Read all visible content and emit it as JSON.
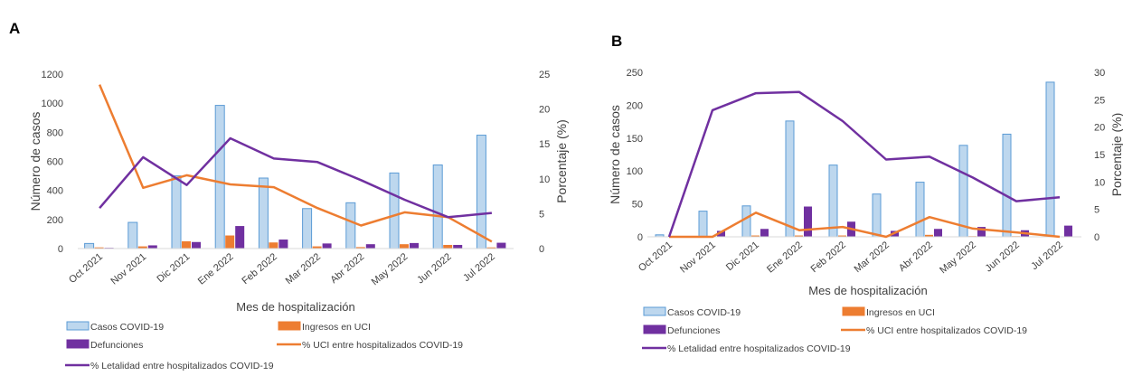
{
  "colors": {
    "cases_fill": "#bdd7ee",
    "cases_stroke": "#5b9bd5",
    "icu": "#ed7d31",
    "deaths": "#7030a0",
    "text": "#404040",
    "axis": "#d9d9d9"
  },
  "chart_data": [
    {
      "type": "bar",
      "panel_label": "A",
      "categories": [
        "Oct 2021",
        "Nov 2021",
        "Dic 2021",
        "Ene 2022",
        "Feb 2022",
        "Mar 2022",
        "Abr 2022",
        "May 2022",
        "Jun 2022",
        "Jul 2022"
      ],
      "xlabel": "Mes de hospitalización",
      "ylabel": "Número de casos",
      "y2label": "Porcentaje (%)",
      "ylim": [
        0,
        1200
      ],
      "y2lim": [
        0,
        25
      ],
      "yticks": [
        "0",
        "200",
        "400",
        "600",
        "800",
        "1000",
        "1200"
      ],
      "y2ticks": [
        "0",
        "5",
        "10",
        "15",
        "20",
        "25"
      ],
      "grid": false,
      "legend_position": "bottom",
      "series": [
        {
          "name": "Casos COVID-19",
          "kind": "bar",
          "axis": "left",
          "values": [
            35,
            180,
            500,
            985,
            485,
            275,
            315,
            520,
            575,
            780
          ]
        },
        {
          "name": "Ingresos en UCI",
          "kind": "bar",
          "axis": "left",
          "values": [
            8,
            15,
            50,
            90,
            42,
            15,
            10,
            30,
            25,
            8
          ]
        },
        {
          "name": "Defunciones",
          "kind": "bar",
          "axis": "left",
          "values": [
            5,
            22,
            45,
            155,
            62,
            35,
            30,
            38,
            25,
            40
          ]
        },
        {
          "name": "% UCI entre hospitalizados COVID-19",
          "kind": "line",
          "axis": "right",
          "values": [
            23.5,
            8.7,
            10.5,
            9.2,
            8.8,
            5.8,
            3.3,
            5.2,
            4.5,
            1.0
          ]
        },
        {
          "name": "% Letalidad entre hospitalizados COVID-19",
          "kind": "line",
          "axis": "right",
          "values": [
            5.8,
            13.1,
            9.1,
            15.8,
            12.9,
            12.4,
            9.8,
            7.0,
            4.5,
            5.1
          ]
        }
      ]
    },
    {
      "type": "bar",
      "panel_label": "B",
      "categories": [
        "Oct 2021",
        "Nov 2021",
        "Dic 2021",
        "Ene 2022",
        "Feb 2022",
        "Mar 2022",
        "Abr 2022",
        "May 2022",
        "Jun 2022",
        "Jul 2022"
      ],
      "xlabel": "Mes de hospitalización",
      "ylabel": "Número de casos",
      "y2label": "Porcentaje (%)",
      "ylim": [
        0,
        250
      ],
      "y2lim": [
        0,
        30
      ],
      "yticks": [
        "0",
        "50",
        "100",
        "150",
        "200",
        "250"
      ],
      "y2ticks": [
        "0",
        "5",
        "10",
        "15",
        "20",
        "25",
        "30"
      ],
      "grid": false,
      "legend_position": "bottom",
      "series": [
        {
          "name": "Casos COVID-19",
          "kind": "bar",
          "axis": "left",
          "values": [
            3,
            39,
            47,
            176,
            109,
            65,
            83,
            139,
            156,
            235
          ]
        },
        {
          "name": "Ingresos en UCI",
          "kind": "bar",
          "axis": "left",
          "values": [
            0,
            0,
            2,
            2,
            2,
            0,
            3,
            1,
            1,
            0
          ]
        },
        {
          "name": "Defunciones",
          "kind": "bar",
          "axis": "left",
          "values": [
            0,
            9,
            12,
            46,
            23,
            9,
            12,
            15,
            10,
            17
          ]
        },
        {
          "name": "% UCI entre hospitalizados COVID-19",
          "kind": "line",
          "axis": "right",
          "values": [
            0,
            0,
            4.4,
            1.2,
            1.8,
            0,
            3.6,
            1.5,
            0.8,
            0
          ]
        },
        {
          "name": "% Letalidad entre hospitalizados COVID-19",
          "kind": "line",
          "axis": "right",
          "values": [
            0,
            23.1,
            26.2,
            26.4,
            21.1,
            14.1,
            14.6,
            10.8,
            6.5,
            7.2
          ]
        }
      ]
    }
  ]
}
